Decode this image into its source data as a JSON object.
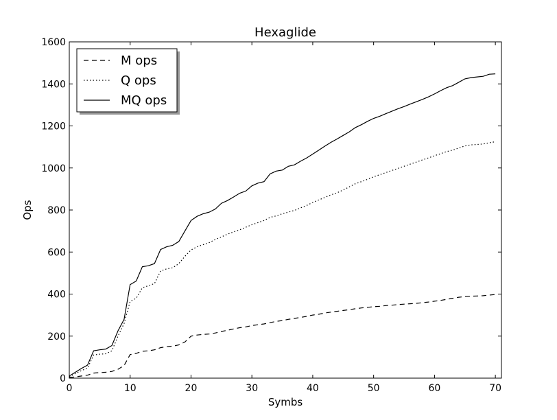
{
  "chart_data": {
    "type": "line",
    "title": "Hexaglide",
    "xlabel": "Symbs",
    "ylabel": "Ops",
    "xlim": [
      0,
      71
    ],
    "ylim": [
      0,
      1600
    ],
    "xticks": [
      0,
      10,
      20,
      30,
      40,
      50,
      60,
      70
    ],
    "yticks": [
      0,
      200,
      400,
      600,
      800,
      1000,
      1200,
      1400,
      1600
    ],
    "grid": false,
    "legend_position": "top-left",
    "colors": {
      "line": "#000000",
      "background": "#ffffff"
    },
    "series": [
      {
        "name": "M ops",
        "style": "dashed",
        "x": [
          0,
          1,
          2,
          3,
          4,
          5,
          6,
          7,
          8,
          9,
          10,
          11,
          12,
          13,
          14,
          15,
          16,
          17,
          18,
          19,
          20,
          21,
          22,
          23,
          24,
          25,
          26,
          27,
          28,
          29,
          30,
          31,
          32,
          33,
          34,
          35,
          36,
          37,
          38,
          39,
          40,
          41,
          42,
          43,
          44,
          45,
          46,
          47,
          48,
          49,
          50,
          51,
          52,
          53,
          54,
          55,
          56,
          57,
          58,
          59,
          60,
          61,
          62,
          63,
          64,
          65,
          66,
          67,
          68,
          69,
          70
        ],
        "values": [
          3,
          6,
          10,
          14,
          24,
          26,
          28,
          32,
          42,
          60,
          112,
          118,
          128,
          130,
          135,
          145,
          150,
          152,
          158,
          172,
          200,
          205,
          208,
          210,
          215,
          222,
          228,
          234,
          240,
          244,
          250,
          254,
          258,
          264,
          270,
          274,
          280,
          284,
          289,
          294,
          300,
          304,
          310,
          314,
          318,
          322,
          326,
          330,
          334,
          337,
          340,
          342,
          345,
          347,
          350,
          352,
          354,
          356,
          359,
          362,
          366,
          370,
          375,
          380,
          385,
          388,
          390,
          391,
          392,
          395,
          398
        ]
      },
      {
        "name": "Q ops",
        "style": "dotted",
        "x": [
          0,
          1,
          2,
          3,
          4,
          5,
          6,
          7,
          8,
          9,
          10,
          11,
          12,
          13,
          14,
          15,
          16,
          17,
          18,
          19,
          20,
          21,
          22,
          23,
          24,
          25,
          26,
          27,
          28,
          29,
          30,
          31,
          32,
          33,
          34,
          35,
          36,
          37,
          38,
          39,
          40,
          41,
          42,
          43,
          44,
          45,
          46,
          47,
          48,
          49,
          50,
          51,
          52,
          53,
          54,
          55,
          56,
          57,
          58,
          59,
          60,
          61,
          62,
          63,
          64,
          65,
          66,
          67,
          68,
          69,
          70
        ],
        "values": [
          6,
          22,
          36,
          48,
          110,
          114,
          116,
          130,
          200,
          260,
          365,
          380,
          430,
          440,
          450,
          510,
          520,
          525,
          545,
          580,
          610,
          625,
          635,
          645,
          660,
          672,
          685,
          696,
          706,
          718,
          730,
          740,
          750,
          765,
          772,
          782,
          790,
          798,
          810,
          822,
          836,
          848,
          860,
          872,
          882,
          895,
          910,
          925,
          935,
          946,
          958,
          968,
          978,
          988,
          998,
          1008,
          1018,
          1028,
          1038,
          1048,
          1058,
          1068,
          1078,
          1085,
          1095,
          1105,
          1110,
          1112,
          1114,
          1120,
          1125
        ]
      },
      {
        "name": "MQ ops",
        "style": "solid",
        "x": [
          0,
          1,
          2,
          3,
          4,
          5,
          6,
          7,
          8,
          9,
          10,
          11,
          12,
          13,
          14,
          15,
          16,
          17,
          18,
          19,
          20,
          21,
          22,
          23,
          24,
          25,
          26,
          27,
          28,
          29,
          30,
          31,
          32,
          33,
          34,
          35,
          36,
          37,
          38,
          39,
          40,
          41,
          42,
          43,
          44,
          45,
          46,
          47,
          48,
          49,
          50,
          51,
          52,
          53,
          54,
          55,
          56,
          57,
          58,
          59,
          60,
          61,
          62,
          63,
          64,
          65,
          66,
          67,
          68,
          69,
          70
        ],
        "values": [
          10,
          28,
          46,
          62,
          130,
          135,
          138,
          155,
          225,
          280,
          445,
          462,
          530,
          535,
          545,
          612,
          625,
          632,
          650,
          700,
          750,
          770,
          782,
          790,
          805,
          832,
          845,
          862,
          880,
          890,
          915,
          928,
          935,
          972,
          985,
          990,
          1008,
          1015,
          1032,
          1048,
          1066,
          1085,
          1104,
          1122,
          1138,
          1155,
          1172,
          1192,
          1206,
          1222,
          1236,
          1246,
          1258,
          1270,
          1282,
          1292,
          1304,
          1315,
          1326,
          1338,
          1352,
          1368,
          1382,
          1392,
          1408,
          1424,
          1430,
          1433,
          1436,
          1446,
          1448
        ]
      }
    ]
  }
}
